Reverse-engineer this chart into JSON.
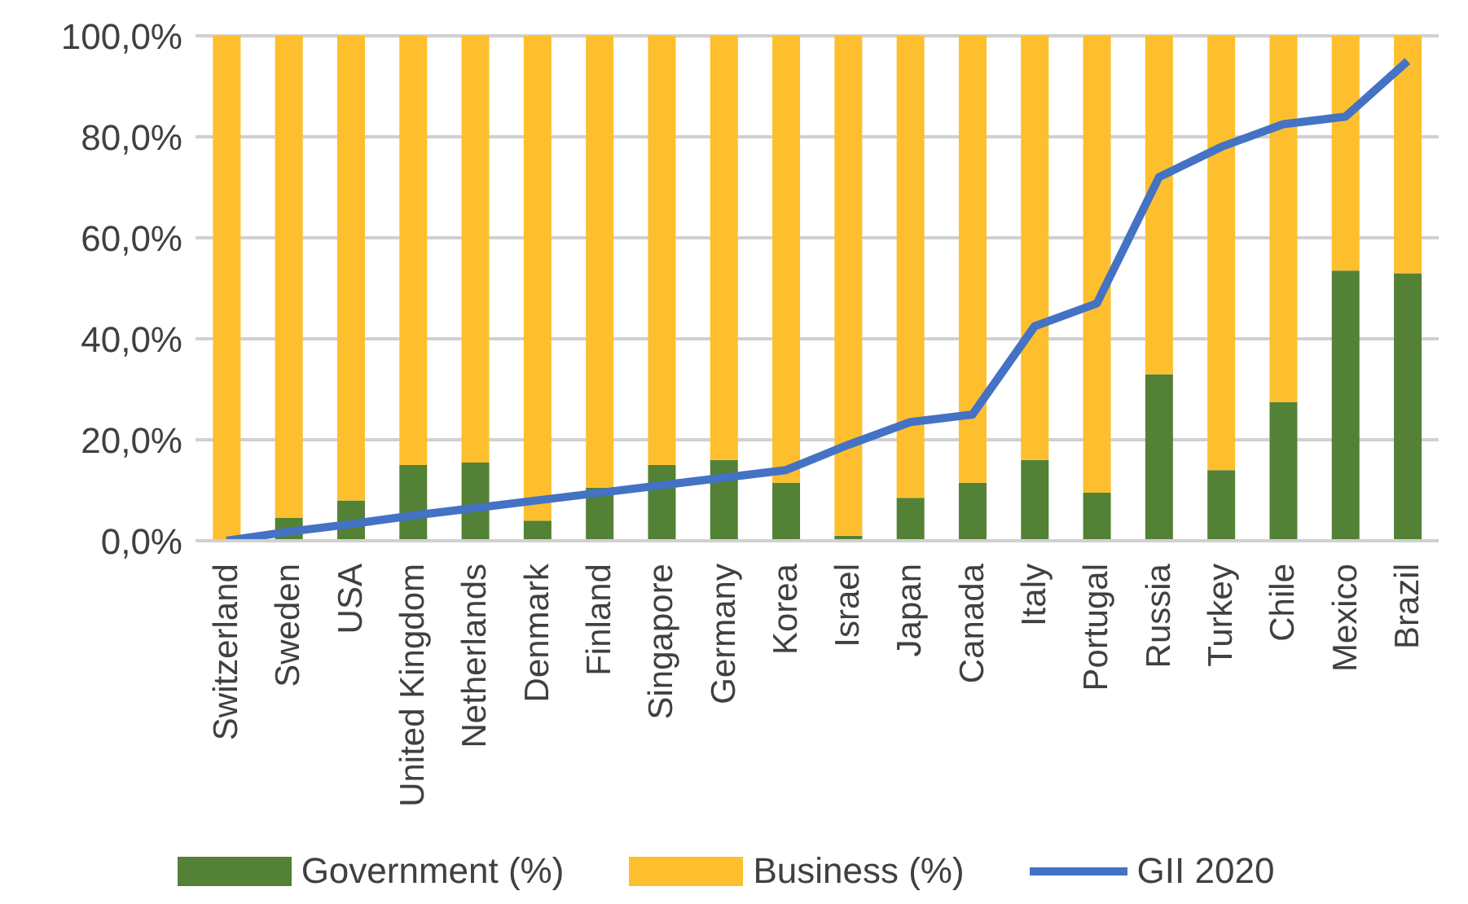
{
  "chart_data": {
    "type": "bar",
    "stacked": true,
    "categories": [
      "Switzerland",
      "Sweden",
      "USA",
      "United Kingdom",
      "Netherlands",
      "Denmark",
      "Finland",
      "Singapore",
      "Germany",
      "Korea",
      "Israel",
      "Japan",
      "Canada",
      "Italy",
      "Portugal",
      "Russia",
      "Turkey",
      "Chile",
      "Mexico",
      "Brazil"
    ],
    "series": [
      {
        "name": "Government (%)",
        "color": "#538135",
        "values": [
          null,
          4.5,
          8,
          15,
          15.5,
          4,
          10.5,
          15,
          16,
          11.5,
          1,
          8.5,
          11.5,
          16,
          9.5,
          33,
          14,
          27.5,
          53.5,
          53
        ]
      },
      {
        "name": "Business (%)",
        "color": "#fdbf2d",
        "values": [
          100,
          95.5,
          92,
          85,
          84.5,
          96,
          89.5,
          85,
          84,
          88.5,
          99,
          91.5,
          88.5,
          84,
          90.5,
          67,
          86,
          72.5,
          46.5,
          47
        ]
      },
      {
        "name": "GII 2020",
        "type": "line",
        "color": "#4472c4",
        "values": [
          0,
          1.8,
          3.3,
          5,
          6.5,
          8,
          9.5,
          11,
          12.5,
          14,
          19,
          23.5,
          25,
          42.5,
          47,
          72,
          78,
          82.5,
          84,
          95
        ]
      }
    ],
    "ylim": [
      0,
      100
    ],
    "yticks": [
      {
        "value": 0,
        "label": "0,0%"
      },
      {
        "value": 20,
        "label": "20,0%"
      },
      {
        "value": 40,
        "label": "40,0%"
      },
      {
        "value": 60,
        "label": "60,0%"
      },
      {
        "value": 80,
        "label": "80,0%"
      },
      {
        "value": 100,
        "label": "100,0%"
      }
    ],
    "grid": "y",
    "legend": "bottom",
    "marker": "none",
    "line_style": "solid"
  }
}
